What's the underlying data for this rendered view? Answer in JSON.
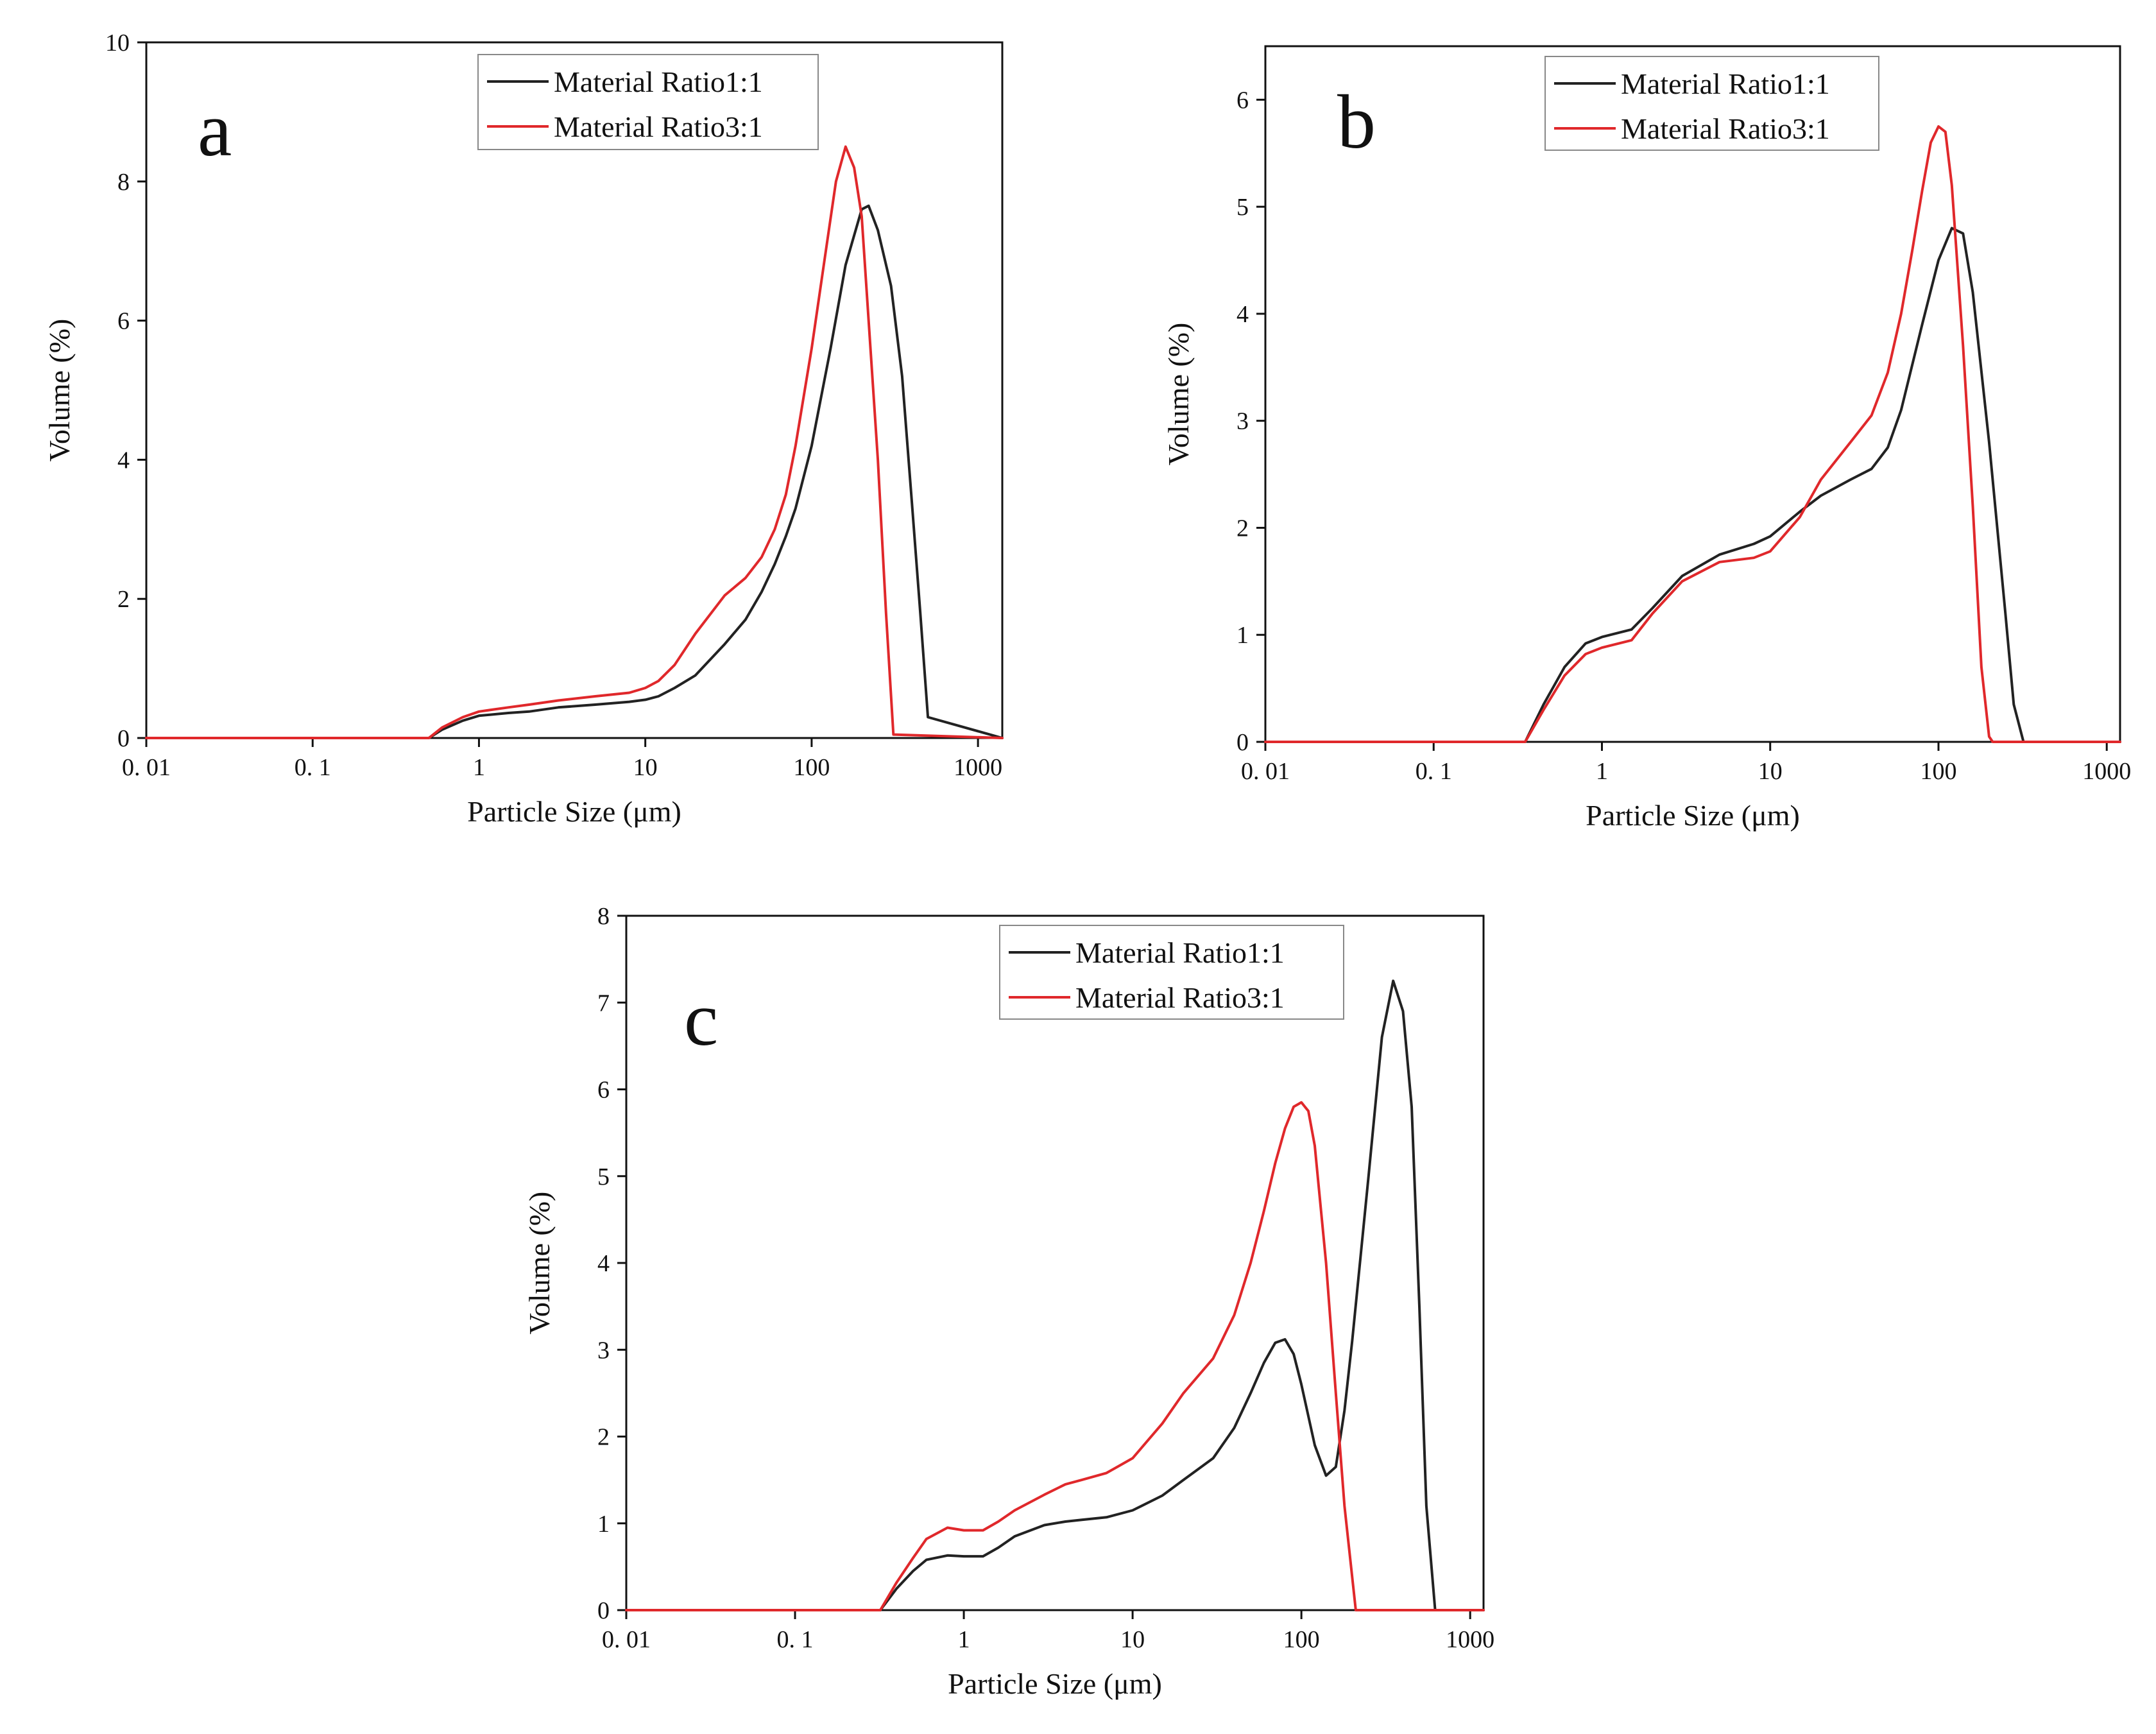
{
  "figure": {
    "legend_labels": [
      "Material Ratio1:1",
      "Material Ratio3:1"
    ],
    "colors": {
      "series_1_1": "#222222",
      "series_3_1": "#e0282b"
    }
  },
  "chart_data": [
    {
      "panel": "a",
      "type": "line",
      "xscale": "log",
      "xlim": [
        0.01,
        1400
      ],
      "ylim": [
        0,
        10
      ],
      "xticks": [
        0.01,
        0.1,
        1,
        10,
        100,
        1000
      ],
      "xtick_labels": [
        "0. 01",
        "0. 1",
        "1",
        "10",
        "100",
        "1000"
      ],
      "yticks": [
        0,
        2,
        4,
        6,
        8,
        10
      ],
      "ytick_labels": [
        "0",
        "2",
        "4",
        "6",
        "8",
        "10"
      ],
      "xlabel": "Particle Size (μm)",
      "ylabel": "Volume (%)",
      "legend_position": "top-center",
      "series": [
        {
          "name": "Material Ratio1:1",
          "color": "#222222",
          "x": [
            0.01,
            0.5,
            0.6,
            0.8,
            1,
            1.5,
            2,
            3,
            5,
            8,
            10,
            12,
            15,
            20,
            30,
            40,
            50,
            60,
            70,
            80,
            100,
            130,
            160,
            200,
            220,
            250,
            300,
            350,
            400,
            450,
            500,
            1400
          ],
          "y": [
            0,
            0,
            0.12,
            0.25,
            0.32,
            0.36,
            0.38,
            0.44,
            0.48,
            0.52,
            0.55,
            0.6,
            0.72,
            0.9,
            1.35,
            1.7,
            2.1,
            2.5,
            2.9,
            3.3,
            4.2,
            5.6,
            6.8,
            7.6,
            7.65,
            7.3,
            6.5,
            5.2,
            3.4,
            1.8,
            0.3,
            0
          ]
        },
        {
          "name": "Material Ratio3:1",
          "color": "#e0282b",
          "x": [
            0.01,
            0.5,
            0.6,
            0.8,
            1,
            1.5,
            2,
            3,
            5,
            8,
            10,
            12,
            15,
            20,
            30,
            40,
            50,
            60,
            70,
            80,
            100,
            120,
            140,
            160,
            180,
            200,
            220,
            250,
            280,
            310,
            1400
          ],
          "y": [
            0,
            0,
            0.15,
            0.3,
            0.38,
            0.44,
            0.48,
            0.54,
            0.6,
            0.65,
            0.72,
            0.82,
            1.05,
            1.5,
            2.05,
            2.3,
            2.6,
            3.0,
            3.5,
            4.2,
            5.6,
            6.9,
            8.0,
            8.5,
            8.2,
            7.5,
            6.0,
            4.0,
            1.8,
            0.05,
            0
          ]
        }
      ]
    },
    {
      "panel": "b",
      "type": "line",
      "xscale": "log",
      "xlim": [
        0.01,
        1200
      ],
      "ylim": [
        0,
        6.5
      ],
      "xticks": [
        0.01,
        0.1,
        1,
        10,
        100,
        1000
      ],
      "xtick_labels": [
        "0. 01",
        "0. 1",
        "1",
        "10",
        "100",
        "1000"
      ],
      "yticks": [
        0,
        1,
        2,
        3,
        4,
        5,
        6
      ],
      "ytick_labels": [
        "0",
        "1",
        "2",
        "3",
        "4",
        "5",
        "6"
      ],
      "xlabel": "Particle Size (μm)",
      "ylabel": "Volume (%)",
      "legend_position": "top-center",
      "series": [
        {
          "name": "Material Ratio1:1",
          "color": "#222222",
          "x": [
            0.01,
            0.35,
            0.45,
            0.6,
            0.8,
            1,
            1.5,
            2,
            3,
            5,
            8,
            10,
            15,
            20,
            30,
            40,
            50,
            60,
            80,
            100,
            120,
            140,
            160,
            200,
            250,
            280,
            320,
            1200
          ],
          "y": [
            0,
            0,
            0.35,
            0.7,
            0.92,
            0.98,
            1.05,
            1.25,
            1.55,
            1.75,
            1.85,
            1.92,
            2.15,
            2.3,
            2.45,
            2.55,
            2.75,
            3.1,
            3.9,
            4.5,
            4.8,
            4.75,
            4.2,
            2.8,
            1.2,
            0.35,
            0,
            0
          ]
        },
        {
          "name": "Material Ratio3:1",
          "color": "#e0282b",
          "x": [
            0.01,
            0.35,
            0.45,
            0.6,
            0.8,
            1,
            1.5,
            2,
            3,
            5,
            8,
            10,
            15,
            20,
            30,
            40,
            50,
            60,
            70,
            80,
            90,
            100,
            110,
            120,
            140,
            160,
            180,
            200,
            210,
            1200
          ],
          "y": [
            0,
            0,
            0.3,
            0.62,
            0.82,
            0.88,
            0.95,
            1.2,
            1.5,
            1.68,
            1.72,
            1.78,
            2.1,
            2.45,
            2.8,
            3.05,
            3.45,
            4.0,
            4.6,
            5.15,
            5.6,
            5.75,
            5.7,
            5.2,
            3.7,
            2.2,
            0.7,
            0.05,
            0,
            0
          ]
        }
      ]
    },
    {
      "panel": "c",
      "type": "line",
      "xscale": "log",
      "xlim": [
        0.01,
        1200
      ],
      "ylim": [
        0,
        8
      ],
      "xticks": [
        0.01,
        0.1,
        1,
        10,
        100,
        1000
      ],
      "xtick_labels": [
        "0. 01",
        "0. 1",
        "1",
        "10",
        "100",
        "1000"
      ],
      "yticks": [
        0,
        1,
        2,
        3,
        4,
        5,
        6,
        7,
        8
      ],
      "ytick_labels": [
        "0",
        "1",
        "2",
        "3",
        "4",
        "5",
        "6",
        "7",
        "8"
      ],
      "xlabel": "Particle Size (μm)",
      "ylabel": "Volume (%)",
      "legend_position": "top-center",
      "series": [
        {
          "name": "Material Ratio1:1",
          "color": "#222222",
          "x": [
            0.01,
            0.32,
            0.4,
            0.5,
            0.6,
            0.8,
            1,
            1.3,
            1.6,
            2,
            3,
            4,
            5,
            7,
            10,
            15,
            20,
            30,
            40,
            50,
            60,
            70,
            80,
            90,
            100,
            120,
            140,
            160,
            180,
            200,
            250,
            300,
            350,
            400,
            450,
            500,
            550,
            620,
            1200
          ],
          "y": [
            0,
            0,
            0.25,
            0.45,
            0.58,
            0.63,
            0.62,
            0.62,
            0.72,
            0.85,
            0.98,
            1.02,
            1.04,
            1.07,
            1.15,
            1.32,
            1.5,
            1.75,
            2.1,
            2.5,
            2.85,
            3.08,
            3.12,
            2.95,
            2.6,
            1.9,
            1.55,
            1.65,
            2.3,
            3.1,
            5.0,
            6.6,
            7.25,
            6.9,
            5.8,
            3.5,
            1.2,
            0,
            0
          ]
        },
        {
          "name": "Material Ratio3:1",
          "color": "#e0282b",
          "x": [
            0.01,
            0.32,
            0.4,
            0.5,
            0.6,
            0.8,
            1,
            1.3,
            1.6,
            2,
            3,
            4,
            5,
            7,
            10,
            15,
            20,
            30,
            40,
            50,
            60,
            70,
            80,
            90,
            100,
            110,
            120,
            140,
            160,
            180,
            210,
            1200
          ],
          "y": [
            0,
            0,
            0.32,
            0.6,
            0.82,
            0.95,
            0.92,
            0.92,
            1.02,
            1.15,
            1.33,
            1.45,
            1.5,
            1.58,
            1.75,
            2.15,
            2.5,
            2.9,
            3.4,
            4.0,
            4.6,
            5.15,
            5.55,
            5.8,
            5.85,
            5.75,
            5.35,
            4.0,
            2.5,
            1.2,
            0,
            0
          ]
        }
      ]
    }
  ]
}
